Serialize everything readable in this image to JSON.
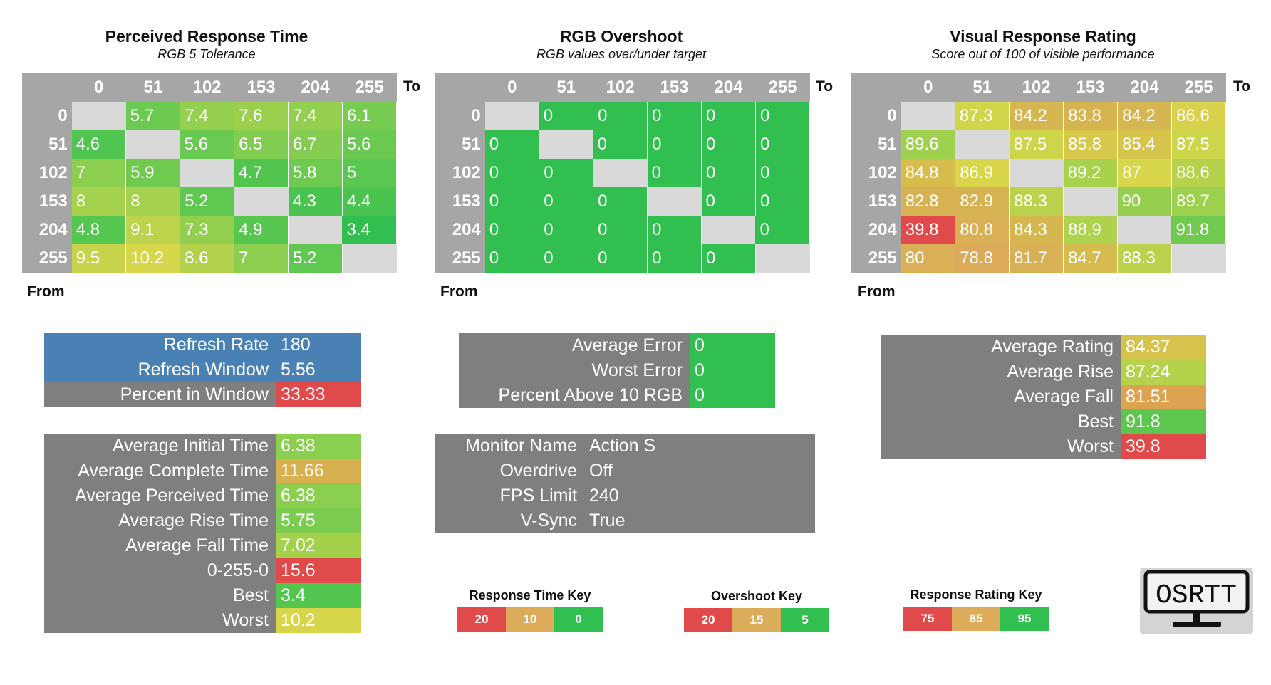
{
  "colors": {
    "grey": "#7f7f7f",
    "header_grey": "#a6a6a6",
    "diag": "#d9d9d9",
    "blue": "#4a81b5",
    "red": "#e04a4a",
    "orange": "#dcac5a",
    "green": "#31c04f"
  },
  "labels": {
    "to": "To",
    "from": "From"
  },
  "panels": [
    {
      "title": "Perceived Response Time",
      "subtitle": "RGB 5 Tolerance"
    },
    {
      "title": "RGB Overshoot",
      "subtitle": "RGB values over/under target"
    },
    {
      "title": "Visual Response Rating",
      "subtitle": "Score out of 100 of visible performance"
    }
  ],
  "chart_data": [
    {
      "type": "heatmap",
      "title": "Perceived Response Time",
      "subtitle": "RGB 5 Tolerance",
      "xlabel": "To",
      "ylabel": "From",
      "x": [
        "0",
        "51",
        "102",
        "153",
        "204",
        "255"
      ],
      "y": [
        "0",
        "51",
        "102",
        "153",
        "204",
        "255"
      ],
      "values": [
        [
          null,
          "5.7",
          "7.4",
          "7.6",
          "7.4",
          "6.1"
        ],
        [
          "4.6",
          null,
          "5.6",
          "6.5",
          "6.7",
          "5.6"
        ],
        [
          "7",
          "5.9",
          null,
          "4.7",
          "5.8",
          "5"
        ],
        [
          "8",
          "8",
          "5.2",
          null,
          "4.3",
          "4.4"
        ],
        [
          "4.8",
          "9.1",
          "7.3",
          "4.9",
          null,
          "3.4"
        ],
        [
          "9.5",
          "10.2",
          "8.6",
          "7",
          "5.2",
          null
        ]
      ],
      "scale": [
        20,
        10,
        0
      ]
    },
    {
      "type": "heatmap",
      "title": "RGB Overshoot",
      "subtitle": "RGB values over/under target",
      "xlabel": "To",
      "ylabel": "From",
      "x": [
        "0",
        "51",
        "102",
        "153",
        "204",
        "255"
      ],
      "y": [
        "0",
        "51",
        "102",
        "153",
        "204",
        "255"
      ],
      "values": [
        [
          null,
          "0",
          "0",
          "0",
          "0",
          "0"
        ],
        [
          "0",
          null,
          "0",
          "0",
          "0",
          "0"
        ],
        [
          "0",
          "0",
          null,
          "0",
          "0",
          "0"
        ],
        [
          "0",
          "0",
          "0",
          null,
          "0",
          "0"
        ],
        [
          "0",
          "0",
          "0",
          "0",
          null,
          "0"
        ],
        [
          "0",
          "0",
          "0",
          "0",
          "0",
          null
        ]
      ],
      "scale": [
        20,
        15,
        5
      ]
    },
    {
      "type": "heatmap",
      "title": "Visual Response Rating",
      "subtitle": "Score out of 100 of visible performance",
      "xlabel": "To",
      "ylabel": "From",
      "x": [
        "0",
        "51",
        "102",
        "153",
        "204",
        "255"
      ],
      "y": [
        "0",
        "51",
        "102",
        "153",
        "204",
        "255"
      ],
      "values": [
        [
          null,
          "87.3",
          "84.2",
          "83.8",
          "84.2",
          "86.6"
        ],
        [
          "89.6",
          null,
          "87.5",
          "85.8",
          "85.4",
          "87.5"
        ],
        [
          "84.8",
          "86.9",
          null,
          "89.2",
          "87",
          "88.6"
        ],
        [
          "82.8",
          "82.9",
          "88.3",
          null,
          "90",
          "89.7"
        ],
        [
          "39.8",
          "80.8",
          "84.3",
          "88.9",
          null,
          "91.8"
        ],
        [
          "80",
          "78.8",
          "81.7",
          "84.7",
          "88.3",
          null
        ]
      ],
      "scale": [
        75,
        85,
        95
      ]
    }
  ],
  "refresh": [
    {
      "key": "Refresh Rate",
      "value": "180",
      "bg": "#4a81b5",
      "vbg": "#4a81b5"
    },
    {
      "key": "Refresh Window",
      "value": "5.56",
      "bg": "#4a81b5",
      "vbg": "#4a81b5"
    },
    {
      "key": "Percent in Window",
      "value": "33.33",
      "bg": "#7f7f7f",
      "vbg": "#e04a4a"
    }
  ],
  "times": [
    {
      "key": "Average Initial Time",
      "value": "6.38",
      "vbg": "#8bcf50"
    },
    {
      "key": "Average Complete Time",
      "value": "11.66",
      "vbg": "#d9b04f"
    },
    {
      "key": "Average Perceived Time",
      "value": "6.38",
      "vbg": "#8bcf50"
    },
    {
      "key": "Average Rise Time",
      "value": "5.75",
      "vbg": "#7ccc50"
    },
    {
      "key": "Average Fall Time",
      "value": "7.02",
      "vbg": "#a3d24a"
    },
    {
      "key": "0-255-0",
      "value": "15.6",
      "vbg": "#e04a4a"
    },
    {
      "key": "Best",
      "value": "3.4",
      "vbg": "#52c64d"
    },
    {
      "key": "Worst",
      "value": "10.2",
      "vbg": "#d7d64a"
    }
  ],
  "overshoot_stats": [
    {
      "key": "Average Error",
      "value": "0",
      "vbg": "#31c04f"
    },
    {
      "key": "Worst Error",
      "value": "0",
      "vbg": "#31c04f"
    },
    {
      "key": "Percent Above 10 RGB",
      "value": "0",
      "vbg": "#31c04f"
    }
  ],
  "monitor": [
    {
      "key": "Monitor Name",
      "value": "Action S"
    },
    {
      "key": "Overdrive",
      "value": "Off"
    },
    {
      "key": "FPS Limit",
      "value": "240"
    },
    {
      "key": "V-Sync",
      "value": "True"
    }
  ],
  "rating_stats": [
    {
      "key": "Average Rating",
      "value": "84.37",
      "vbg": "#d8c24e"
    },
    {
      "key": "Average Rise",
      "value": "87.24",
      "vbg": "#b5d24c"
    },
    {
      "key": "Average Fall",
      "value": "81.51",
      "vbg": "#dca450"
    },
    {
      "key": "Best",
      "value": "91.8",
      "vbg": "#5cc64e"
    },
    {
      "key": "Worst",
      "value": "39.8",
      "vbg": "#e04a4a"
    }
  ],
  "keys": [
    {
      "title": "Response Time Key",
      "labels": [
        "20",
        "10",
        "0"
      ],
      "colors": [
        "#e04a4a",
        "#dcac5a",
        "#31c04f"
      ]
    },
    {
      "title": "Overshoot Key",
      "labels": [
        "20",
        "15",
        "5"
      ],
      "colors": [
        "#e04a4a",
        "#dcac5a",
        "#31c04f"
      ]
    },
    {
      "title": "Response Rating Key",
      "labels": [
        "75",
        "85",
        "95"
      ],
      "colors": [
        "#e04a4a",
        "#dcac5a",
        "#31c04f"
      ]
    }
  ],
  "logo": {
    "text": "OSRTT"
  }
}
